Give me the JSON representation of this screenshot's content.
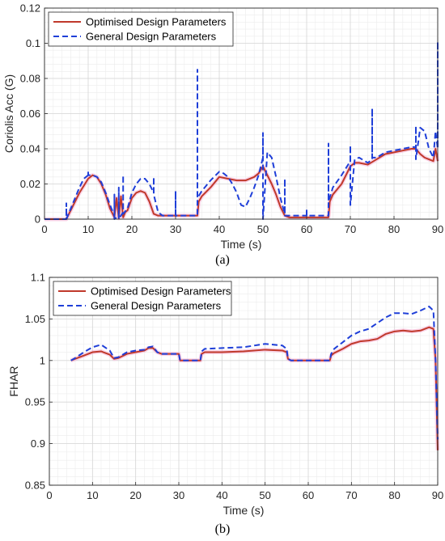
{
  "chart_data": [
    {
      "type": "line",
      "caption": "(a)",
      "xlabel": "Time (s)",
      "ylabel": "Coriolis Acc (G)",
      "xlim": [
        0,
        90
      ],
      "ylim": [
        0,
        0.12
      ],
      "xticks": [
        0,
        10,
        20,
        30,
        40,
        50,
        60,
        70,
        80,
        90
      ],
      "yticks": [
        0,
        0.02,
        0.04,
        0.06,
        0.08,
        0.1,
        0.12
      ],
      "ytick_labels": [
        "0",
        "0.02",
        "0.04",
        "0.06",
        "0.08",
        "0.1",
        "0.12"
      ],
      "grid": true,
      "legend_position": "top-left",
      "series": [
        {
          "name": "Optimised Design Parameters",
          "color": "#c0392b",
          "style": "solid",
          "x": [
            0,
            5,
            6,
            8,
            10,
            11,
            12,
            13,
            14,
            15,
            16,
            16.5,
            17,
            17.5,
            18,
            18.5,
            19,
            20,
            21,
            22,
            23,
            24,
            25,
            26,
            27,
            28,
            30,
            33,
            35,
            35.3,
            36,
            38,
            40,
            42,
            44,
            46,
            48,
            49,
            50,
            51,
            52,
            53,
            54,
            55,
            56,
            58,
            60,
            63,
            65,
            65.3,
            66,
            68,
            70,
            71,
            72,
            74,
            76,
            78,
            80,
            82,
            84,
            85,
            86,
            87,
            88,
            89,
            89.5,
            90
          ],
          "y": [
            0,
            0,
            0.005,
            0.015,
            0.023,
            0.025,
            0.024,
            0.02,
            0.014,
            0.006,
            0.001,
            0.012,
            0.0005,
            0.013,
            0.001,
            0.004,
            0.005,
            0.012,
            0.015,
            0.016,
            0.015,
            0.01,
            0.003,
            0.002,
            0.002,
            0.002,
            0.002,
            0.002,
            0.002,
            0.01,
            0.013,
            0.018,
            0.024,
            0.023,
            0.022,
            0.022,
            0.024,
            0.026,
            0.03,
            0.025,
            0.02,
            0.014,
            0.007,
            0.002,
            0.001,
            0.001,
            0.001,
            0.001,
            0.001,
            0.01,
            0.014,
            0.02,
            0.03,
            0.032,
            0.032,
            0.031,
            0.034,
            0.037,
            0.038,
            0.039,
            0.04,
            0.04,
            0.037,
            0.035,
            0.034,
            0.033,
            0.04,
            0.033
          ]
        },
        {
          "name": "General Design Parameters",
          "color": "#1f3fd8",
          "style": "dashed",
          "x": [
            0,
            5,
            5,
            5,
            6,
            8,
            9,
            10,
            10,
            10,
            11,
            12,
            13,
            14,
            15,
            16,
            16,
            16,
            17,
            17,
            17,
            18,
            18,
            18,
            19,
            20,
            21,
            22,
            23,
            24,
            25,
            25,
            25,
            26,
            27,
            28,
            30,
            30,
            30,
            33,
            35,
            35,
            35,
            36,
            38,
            40,
            41,
            42,
            43,
            44,
            45,
            46,
            47,
            48,
            49,
            50,
            50,
            50,
            51,
            52,
            53,
            54,
            55,
            55,
            55,
            56,
            58,
            60,
            60,
            60,
            63,
            65,
            65,
            65,
            66,
            68,
            70,
            70,
            70,
            71,
            72,
            74,
            75,
            75,
            75,
            76,
            78,
            80,
            82,
            84,
            85,
            85,
            85,
            86,
            87,
            88,
            89,
            89.5,
            90,
            90,
            90
          ],
          "y": [
            0,
            0,
            0.009,
            0,
            0.006,
            0.018,
            0.023,
            0.025,
            0.027,
            0.025,
            0.025,
            0.024,
            0.021,
            0.015,
            0.008,
            0.002,
            0.014,
            0,
            0.002,
            0.018,
            0,
            0.004,
            0.025,
            0.003,
            0.006,
            0.015,
            0.02,
            0.023,
            0.023,
            0.02,
            0.015,
            0.024,
            0.014,
            0.004,
            0.002,
            0.002,
            0.002,
            0.016,
            0.002,
            0.002,
            0.002,
            0.085,
            0.012,
            0.016,
            0.022,
            0.027,
            0.026,
            0.024,
            0.02,
            0.015,
            0.008,
            0.007,
            0.012,
            0.018,
            0.025,
            0.035,
            0.049,
            0,
            0.038,
            0.035,
            0.024,
            0.012,
            0.003,
            0.023,
            0.002,
            0.002,
            0.002,
            0.002,
            0.005,
            0.002,
            0.002,
            0.002,
            0.043,
            0.01,
            0.018,
            0.025,
            0.033,
            0.042,
            0.008,
            0.034,
            0.035,
            0.032,
            0.034,
            0.063,
            0.035,
            0.035,
            0.038,
            0.039,
            0.04,
            0.041,
            0.041,
            0.053,
            0.034,
            0.052,
            0.05,
            0.04,
            0.035,
            0.05,
            0.04,
            0.101,
            0.04
          ]
        }
      ]
    },
    {
      "type": "line",
      "caption": "(b)",
      "xlabel": "Time (s)",
      "ylabel": "FHAR",
      "xlim": [
        0,
        90
      ],
      "ylim": [
        0.85,
        1.1
      ],
      "xticks": [
        0,
        10,
        20,
        30,
        40,
        50,
        60,
        70,
        80,
        90
      ],
      "yticks": [
        0.85,
        0.9,
        0.95,
        1,
        1.05,
        1.1
      ],
      "ytick_labels": [
        "0.85",
        "0.9",
        "0.95",
        "1",
        "1.05",
        "1.1"
      ],
      "grid": true,
      "legend_position": "top-left",
      "series": [
        {
          "name": "Optimised Design Parameters",
          "color": "#c0392b",
          "style": "solid",
          "x": [
            5,
            6,
            8,
            10,
            12,
            14,
            15,
            16,
            18,
            20,
            22,
            23,
            24,
            25,
            26,
            28,
            30,
            30.3,
            33,
            35,
            35.3,
            36,
            40,
            45,
            50,
            54,
            55,
            55.3,
            56,
            60,
            65,
            65.3,
            66,
            68,
            70,
            72,
            74,
            76,
            78,
            80,
            82,
            84,
            86,
            88,
            89,
            89.5,
            90
          ],
          "y": [
            1.0,
            1.002,
            1.006,
            1.01,
            1.011,
            1.007,
            1.002,
            1.003,
            1.008,
            1.01,
            1.012,
            1.015,
            1.015,
            1.01,
            1.008,
            1.008,
            1.008,
            1.0,
            1.0,
            1.0,
            1.008,
            1.01,
            1.01,
            1.011,
            1.013,
            1.012,
            1.01,
            1.002,
            1.0,
            1.0,
            1.0,
            1.006,
            1.009,
            1.014,
            1.02,
            1.023,
            1.024,
            1.026,
            1.032,
            1.035,
            1.036,
            1.035,
            1.036,
            1.04,
            1.038,
            1.0,
            0.892
          ]
        },
        {
          "name": "General Design Parameters",
          "color": "#1f3fd8",
          "style": "dashed",
          "x": [
            5,
            6,
            8,
            10,
            12,
            14,
            15,
            16,
            18,
            20,
            22,
            23,
            24,
            25,
            26,
            28,
            30,
            30.3,
            33,
            35,
            35.3,
            36,
            40,
            45,
            50,
            54,
            55,
            55.3,
            56,
            60,
            65,
            65.3,
            66,
            68,
            70,
            72,
            74,
            76,
            78,
            80,
            82,
            84,
            86,
            88,
            89,
            89.5,
            90
          ],
          "y": [
            1.0,
            1.003,
            1.01,
            1.016,
            1.019,
            1.012,
            1.003,
            1.004,
            1.01,
            1.012,
            1.013,
            1.016,
            1.017,
            1.01,
            1.008,
            1.008,
            1.008,
            1.0,
            1.0,
            1.0,
            1.011,
            1.014,
            1.015,
            1.016,
            1.02,
            1.018,
            1.014,
            1.002,
            1.0,
            1.0,
            1.0,
            1.008,
            1.014,
            1.022,
            1.03,
            1.035,
            1.038,
            1.045,
            1.052,
            1.057,
            1.057,
            1.056,
            1.06,
            1.065,
            1.06,
            1.0,
            0.905
          ]
        }
      ]
    }
  ]
}
